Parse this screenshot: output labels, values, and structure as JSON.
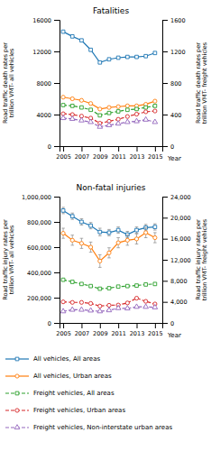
{
  "chart_data": [
    {
      "type": "line",
      "title": "Fatalities",
      "xlabel": "Year",
      "ylabel": "Road traffic death rates per trillion VMT- all vehicles",
      "y2label": "Road traffic death rates per trillion VMT- freight vehicles",
      "x": [
        2005,
        2006,
        2007,
        2008,
        2009,
        2010,
        2011,
        2012,
        2013,
        2014,
        2015
      ],
      "xlim": [
        2004.6,
        2015.8
      ],
      "xticks": [
        2005,
        2007,
        2009,
        2011,
        2013,
        2015
      ],
      "ylim": [
        0,
        16000
      ],
      "yticks": [
        0,
        4000,
        8000,
        12000,
        16000
      ],
      "y2lim": [
        0,
        1600
      ],
      "y2ticks": [
        0,
        400,
        800,
        1200,
        1600
      ],
      "series": [
        {
          "name": "All vehicles, All areas",
          "marker": "square",
          "line_style": "solid",
          "values": [
            14500,
            13900,
            13400,
            12200,
            10600,
            11000,
            11200,
            11300,
            11300,
            11400,
            11800
          ]
        },
        {
          "name": "All vehicles, Urban areas",
          "marker": "circle",
          "line_style": "solid",
          "values": [
            6200,
            6000,
            5800,
            5400,
            4700,
            4900,
            5000,
            5100,
            5100,
            5300,
            5700
          ]
        },
        {
          "name": "Freight vehicles, All areas",
          "marker": "square",
          "line_style": "dashed",
          "axis": "y2",
          "values": [
            520,
            510,
            490,
            460,
            390,
            420,
            440,
            460,
            470,
            490,
            510
          ]
        },
        {
          "name": "Freight vehicles, Urban areas",
          "marker": "circle",
          "line_style": "dashed",
          "axis": "y2",
          "values": [
            410,
            400,
            380,
            355,
            290,
            315,
            340,
            375,
            405,
            435,
            445
          ]
        },
        {
          "name": "Freight vehicles, Non-interstate urban areas",
          "marker": "triangle",
          "line_style": "dashed",
          "axis": "y2",
          "values": [
            355,
            345,
            325,
            305,
            245,
            265,
            285,
            305,
            315,
            335,
            305
          ]
        }
      ]
    },
    {
      "type": "line",
      "title": "Non-fatal injuries",
      "xlabel": "Year",
      "ylabel": "Road traffic injury rates per trillion VMT- all vehicles",
      "y2label": "Road traffic injury rates per trillion VMT- freight vehicles",
      "x": [
        2005,
        2006,
        2007,
        2008,
        2009,
        2010,
        2011,
        2012,
        2013,
        2014,
        2015
      ],
      "xlim": [
        2004.6,
        2015.8
      ],
      "xticks": [
        2005,
        2007,
        2009,
        2011,
        2013,
        2015
      ],
      "ylim": [
        0,
        1000000
      ],
      "yticks": [
        0,
        {
          "value": 200000,
          "label": "200,000"
        },
        {
          "value": 400000,
          "label": "400,000"
        },
        {
          "value": 600000,
          "label": "600,000"
        },
        {
          "value": 800000,
          "label": "800,000"
        },
        {
          "value": 1000000,
          "label": "1,000,000"
        }
      ],
      "y2lim": [
        0,
        24000
      ],
      "y2ticks": [
        0,
        {
          "value": 4000,
          "label": "4,000"
        },
        {
          "value": 8000,
          "label": "8,000"
        },
        {
          "value": 12000,
          "label": "12,000"
        },
        {
          "value": 16000,
          "label": "16,000"
        },
        {
          "value": 20000,
          "label": "20,000"
        },
        {
          "value": 24000,
          "label": "24,000"
        }
      ],
      "legend": "lower left",
      "series": [
        {
          "name": "All vehicles, All areas",
          "marker": "square",
          "line_style": "solid",
          "values": [
            890000,
            845000,
            800000,
            770000,
            720000,
            715000,
            735000,
            700000,
            735000,
            755000,
            760000
          ],
          "error_low": [
            25000,
            25000,
            25000,
            25000,
            30000,
            25000,
            25000,
            25000,
            25000,
            25000,
            25000
          ],
          "error_high": [
            25000,
            25000,
            25000,
            25000,
            30000,
            25000,
            25000,
            25000,
            25000,
            25000,
            25000
          ]
        },
        {
          "name": "All vehicles, Urban areas",
          "marker": "circle",
          "line_style": "solid",
          "values": [
            710000,
            655000,
            630000,
            600000,
            490000,
            555000,
            635000,
            655000,
            665000,
            715000,
            675000
          ],
          "error_low": [
            40000,
            40000,
            40000,
            40000,
            50000,
            40000,
            40000,
            40000,
            40000,
            40000,
            40000
          ],
          "error_high": [
            40000,
            40000,
            40000,
            40000,
            50000,
            40000,
            40000,
            40000,
            40000,
            40000,
            40000
          ]
        },
        {
          "name": "Freight vehicles, All areas",
          "marker": "square",
          "line_style": "dashed",
          "axis": "y2",
          "values": [
            8200,
            7800,
            7400,
            7000,
            6500,
            6600,
            6900,
            7000,
            7100,
            7300,
            7400
          ]
        },
        {
          "name": "Freight vehicles, Urban areas",
          "marker": "circle",
          "line_style": "dashed",
          "axis": "y2",
          "values": [
            4000,
            3900,
            3900,
            3700,
            3200,
            3350,
            3400,
            3800,
            4700,
            4100,
            3600
          ]
        },
        {
          "name": "Freight vehicles, Non-interstate urban areas",
          "marker": "triangle",
          "line_style": "dashed",
          "axis": "y2",
          "values": [
            2200,
            2500,
            2500,
            2350,
            2200,
            2400,
            2800,
            2750,
            3050,
            3050,
            2950
          ]
        }
      ]
    }
  ]
}
